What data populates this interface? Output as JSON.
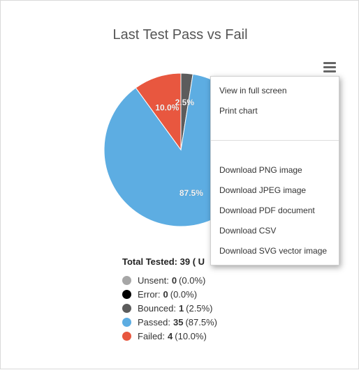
{
  "chart_data": {
    "type": "pie",
    "title": "Last Test Pass vs Fail",
    "slices": [
      {
        "name": "Bounced",
        "value": 1,
        "percent": 2.5,
        "label": "2.5%",
        "color": "#5c5c5c"
      },
      {
        "name": "Passed",
        "value": 35,
        "percent": 87.5,
        "label": "87.5%",
        "color": "#5dade2"
      },
      {
        "name": "Failed",
        "value": 4,
        "percent": 10.0,
        "label": "10.0%",
        "color": "#e8573f"
      }
    ]
  },
  "menu": {
    "items_top": [
      "View in full screen",
      "Print chart"
    ],
    "items_bottom": [
      "Download PNG image",
      "Download JPEG image",
      "Download PDF document",
      "Download CSV",
      "Download SVG vector image"
    ]
  },
  "summary": {
    "label": "Total Tested:",
    "value": "39",
    "suffix": "( U"
  },
  "legend": [
    {
      "label": "Unsent:",
      "count": "0",
      "pct": "(0.0%)",
      "color": "#a6a6a6"
    },
    {
      "label": "Error:",
      "count": "0",
      "pct": "(0.0%)",
      "color": "#000000"
    },
    {
      "label": "Bounced:",
      "count": "1",
      "pct": "(2.5%)",
      "color": "#5c5c5c"
    },
    {
      "label": "Passed:",
      "count": "35",
      "pct": "(87.5%)",
      "color": "#5dade2"
    },
    {
      "label": "Failed:",
      "count": "4",
      "pct": "(10.0%)",
      "color": "#e8573f"
    }
  ]
}
